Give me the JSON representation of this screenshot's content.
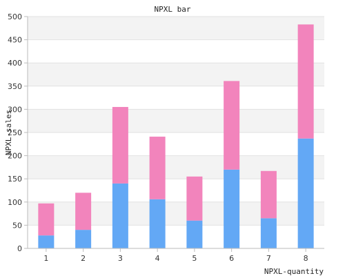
{
  "chart_data": {
    "type": "bar",
    "stacked": true,
    "title": "NPXL bar",
    "xlabel": "NPXL-quantity",
    "ylabel": "NPXL-sales",
    "categories": [
      "1",
      "2",
      "3",
      "4",
      "5",
      "6",
      "7",
      "8"
    ],
    "ylim": [
      0,
      500
    ],
    "yticks": [
      "0",
      "50",
      "100",
      "150",
      "200",
      "250",
      "300",
      "350",
      "400",
      "450",
      "500"
    ],
    "grid": true,
    "legend": "none",
    "series": [
      {
        "values": [
          28,
          40,
          140,
          106,
          60,
          170,
          65,
          237
        ],
        "color": "#63a8f5"
      },
      {
        "values": [
          69,
          80,
          165,
          135,
          95,
          191,
          102,
          246
        ],
        "color": "#f284bc"
      }
    ],
    "band_color": "#f3f3f3"
  }
}
